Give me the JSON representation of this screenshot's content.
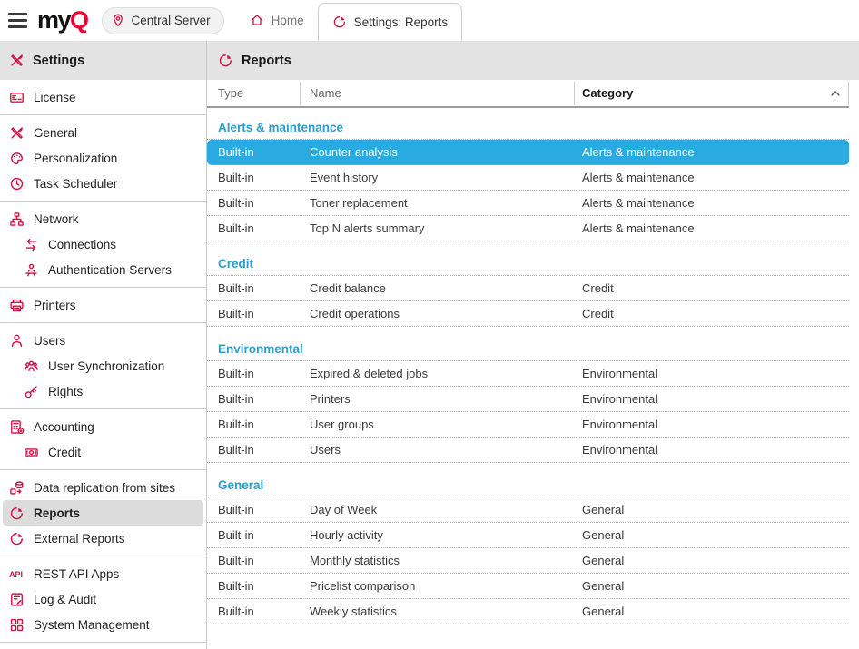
{
  "colors": {
    "brand_red": "#ec0033",
    "icon_accent": "#d01243",
    "selected_row_blue": "#29abe2",
    "category_title_blue": "#2d9dcb"
  },
  "topbar": {
    "logo": {
      "my": "my",
      "q": "Q"
    },
    "server_button": {
      "label": "Central Server",
      "icon": "location-pin-icon"
    },
    "tabs": [
      {
        "label": "Home",
        "icon": "home-icon",
        "active": false
      },
      {
        "label": "Settings: Reports",
        "icon": "reports-pie-icon",
        "active": true
      }
    ]
  },
  "sidebar": {
    "title": "Settings",
    "title_icon": "settings-tools-icon",
    "groups": [
      {
        "items": [
          {
            "label": "License",
            "icon": "license-icon"
          }
        ]
      },
      {
        "items": [
          {
            "label": "General",
            "icon": "general-tools-icon"
          },
          {
            "label": "Personalization",
            "icon": "personalization-palette-icon"
          },
          {
            "label": "Task Scheduler",
            "icon": "task-scheduler-clock-icon"
          }
        ]
      },
      {
        "items": [
          {
            "label": "Network",
            "icon": "network-icon"
          },
          {
            "label": "Connections",
            "icon": "connections-swap-icon",
            "sub": true
          },
          {
            "label": "Authentication Servers",
            "icon": "authentication-servers-icon",
            "sub": true
          }
        ]
      },
      {
        "items": [
          {
            "label": "Printers",
            "icon": "printers-icon"
          }
        ]
      },
      {
        "items": [
          {
            "label": "Users",
            "icon": "users-icon"
          },
          {
            "label": "User Synchronization",
            "icon": "user-synchronization-icon",
            "sub": true
          },
          {
            "label": "Rights",
            "icon": "rights-key-icon",
            "sub": true
          }
        ]
      },
      {
        "items": [
          {
            "label": "Accounting",
            "icon": "accounting-calculator-icon"
          },
          {
            "label": "Credit",
            "icon": "credit-banknote-icon",
            "sub": true
          }
        ]
      },
      {
        "items": [
          {
            "label": "Data replication from sites",
            "icon": "data-replication-icon"
          },
          {
            "label": "Reports",
            "icon": "reports-pie-icon",
            "selected": true
          },
          {
            "label": "External Reports",
            "icon": "external-reports-pie-icon"
          }
        ]
      },
      {
        "items": [
          {
            "label": "REST API Apps",
            "icon": "rest-api-icon"
          },
          {
            "label": "Log & Audit",
            "icon": "log-audit-scroll-icon"
          },
          {
            "label": "System Management",
            "icon": "system-management-grid-icon"
          }
        ]
      }
    ]
  },
  "main": {
    "title": "Reports",
    "title_icon": "reports-pie-icon",
    "table": {
      "columns": [
        {
          "label": "Type"
        },
        {
          "label": "Name"
        },
        {
          "label": "Category",
          "sorted": true,
          "sort_direction": "asc"
        }
      ],
      "groups": [
        {
          "title": "Alerts & maintenance",
          "rows": [
            {
              "type": "Built-in",
              "name": "Counter analysis",
              "category": "Alerts & maintenance",
              "selected": true
            },
            {
              "type": "Built-in",
              "name": "Event history",
              "category": "Alerts & maintenance"
            },
            {
              "type": "Built-in",
              "name": "Toner replacement",
              "category": "Alerts & maintenance"
            },
            {
              "type": "Built-in",
              "name": "Top N alerts summary",
              "category": "Alerts & maintenance"
            }
          ]
        },
        {
          "title": "Credit",
          "rows": [
            {
              "type": "Built-in",
              "name": "Credit balance",
              "category": "Credit"
            },
            {
              "type": "Built-in",
              "name": "Credit operations",
              "category": "Credit"
            }
          ]
        },
        {
          "title": "Environmental",
          "rows": [
            {
              "type": "Built-in",
              "name": "Expired & deleted jobs",
              "category": "Environmental"
            },
            {
              "type": "Built-in",
              "name": "Printers",
              "category": "Environmental"
            },
            {
              "type": "Built-in",
              "name": "User groups",
              "category": "Environmental"
            },
            {
              "type": "Built-in",
              "name": "Users",
              "category": "Environmental"
            }
          ]
        },
        {
          "title": "General",
          "rows": [
            {
              "type": "Built-in",
              "name": "Day of Week",
              "category": "General"
            },
            {
              "type": "Built-in",
              "name": "Hourly activity",
              "category": "General"
            },
            {
              "type": "Built-in",
              "name": "Monthly statistics",
              "category": "General"
            },
            {
              "type": "Built-in",
              "name": "Pricelist comparison",
              "category": "General"
            },
            {
              "type": "Built-in",
              "name": "Weekly statistics",
              "category": "General"
            }
          ]
        }
      ]
    }
  }
}
